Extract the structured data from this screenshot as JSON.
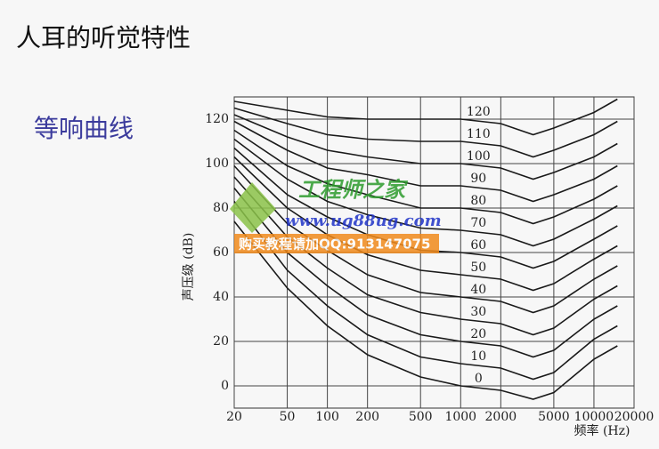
{
  "slide_title": "人耳的听觉特性",
  "chart_data": {
    "type": "line",
    "title": "等响曲线",
    "y_label": "声压级 (dB)",
    "x_label": "频率 (Hz)",
    "xscale": "log",
    "grid": true,
    "color": "#1a1a1a",
    "xlim": [
      20,
      20000
    ],
    "xticks": [
      20,
      50,
      100,
      200,
      500,
      1000,
      2000,
      5000,
      10000,
      20000
    ],
    "ylim": [
      -10,
      130
    ],
    "yticks": [
      0,
      20,
      40,
      60,
      80,
      100,
      120
    ],
    "x": [
      20,
      50,
      100,
      200,
      500,
      1000,
      2000,
      3500,
      5000,
      10000,
      15000
    ],
    "series": [
      {
        "name": "0",
        "values": [
          74,
          44,
          27,
          14,
          4,
          0,
          -2,
          -6,
          -3,
          12,
          18
        ]
      },
      {
        "name": "10",
        "values": [
          83,
          52,
          36,
          23,
          13,
          10,
          8,
          3,
          6,
          21,
          27
        ]
      },
      {
        "name": "20",
        "values": [
          89,
          60,
          45,
          32,
          23,
          20,
          18,
          13,
          16,
          30,
          36
        ]
      },
      {
        "name": "30",
        "values": [
          94,
          67,
          53,
          41,
          33,
          30,
          28,
          23,
          26,
          39,
          45
        ]
      },
      {
        "name": "40",
        "values": [
          99,
          73,
          61,
          50,
          42,
          40,
          38,
          33,
          36,
          48,
          54
        ]
      },
      {
        "name": "50",
        "values": [
          103,
          80,
          68,
          59,
          52,
          50,
          48,
          43,
          46,
          57,
          63
        ]
      },
      {
        "name": "60",
        "values": [
          107,
          86,
          76,
          68,
          61,
          60,
          58,
          53,
          56,
          66,
          72
        ]
      },
      {
        "name": "70",
        "values": [
          111,
          93,
          83,
          77,
          71,
          70,
          68,
          63,
          66,
          75,
          81
        ]
      },
      {
        "name": "80",
        "values": [
          115,
          99,
          91,
          86,
          80,
          80,
          78,
          73,
          76,
          84,
          90
        ]
      },
      {
        "name": "90",
        "values": [
          119,
          106,
          98,
          95,
          90,
          90,
          88,
          83,
          86,
          93,
          99
        ]
      },
      {
        "name": "100",
        "values": [
          122,
          112,
          106,
          103,
          100,
          100,
          98,
          93,
          96,
          103,
          109
        ]
      },
      {
        "name": "110",
        "values": [
          125,
          118,
          113,
          111,
          110,
          110,
          108,
          103,
          106,
          113,
          119
        ]
      },
      {
        "name": "120",
        "values": [
          128,
          124,
          121,
          120,
          120,
          120,
          118,
          113,
          116,
          123,
          129
        ]
      }
    ]
  },
  "watermark": {
    "brand": "工程师之家",
    "url": "www.ug88ug.com",
    "contact": "购买教程请加QQ:913147075"
  }
}
